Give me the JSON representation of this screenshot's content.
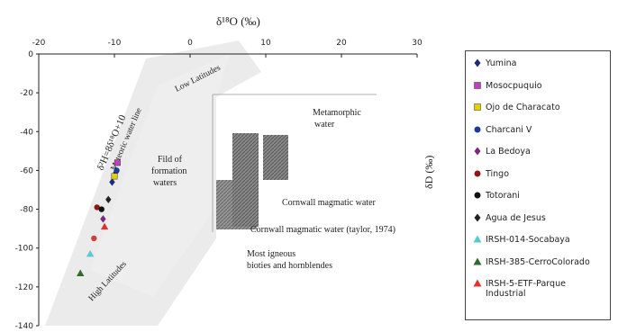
{
  "chart_data": {
    "type": "scatter",
    "title": "",
    "xlabel": "δ¹⁸O (‰)",
    "ylabel": "δD (‰)",
    "xlim": [
      -20,
      30
    ],
    "ylim": [
      -140,
      0
    ],
    "xticks": [
      -20,
      -10,
      0,
      10,
      20,
      30
    ],
    "yticks": [
      0,
      -20,
      -40,
      -60,
      -80,
      -100,
      -120,
      -140
    ],
    "series": [
      {
        "name": "Yumina",
        "color": "#1c2a7a",
        "marker": "diamond",
        "points": [
          [
            -9.8,
            -61
          ],
          [
            -10.3,
            -66
          ]
        ]
      },
      {
        "name": "Mosocpuquio",
        "color": "#c040c0",
        "marker": "square",
        "points": [
          [
            -9.6,
            -56
          ]
        ]
      },
      {
        "name": "Ojo de Characato",
        "color": "#e8d000",
        "marker": "square",
        "points": [
          [
            -10.0,
            -63
          ]
        ]
      },
      {
        "name": "Charcani V",
        "color": "#1a3b9a",
        "marker": "circle",
        "points": [
          [
            -9.7,
            -60
          ]
        ]
      },
      {
        "name": "La Bedoya",
        "color": "#7a2a7a",
        "marker": "diamond",
        "points": [
          [
            -11.5,
            -85
          ]
        ]
      },
      {
        "name": "Tingo",
        "color": "#8a1a1a",
        "marker": "circle",
        "points": [
          [
            -12.3,
            -79
          ]
        ]
      },
      {
        "name": "Totorani",
        "color": "#111111",
        "marker": "circle",
        "points": [
          [
            -11.7,
            -80
          ]
        ]
      },
      {
        "name": "Agua de Jesus",
        "color": "#222222",
        "marker": "diamond",
        "points": [
          [
            -10.8,
            -75
          ]
        ]
      },
      {
        "name": "IRSH-014-Socabaya",
        "color": "#59c9c9",
        "marker": "triangle",
        "points": [
          [
            -13.2,
            -103
          ]
        ]
      },
      {
        "name": "IRSH-385-CerroColorado",
        "color": "#2f6a2f",
        "marker": "triangle",
        "points": [
          [
            -14.5,
            -113
          ]
        ]
      },
      {
        "name": "IRSH-5-ETF-Parque Industrial",
        "color": "#e03030",
        "marker": "triangle",
        "points": [
          [
            -11.3,
            -89
          ]
        ]
      },
      {
        "name": "",
        "color": "#d04040",
        "marker": "circle",
        "points": [
          [
            -12.7,
            -95
          ]
        ]
      }
    ],
    "annotations": {
      "low_latitudes": "Low Latitudes",
      "high_latitudes": "High Latitudes",
      "meteoric_line_eq": "δ²H=8δ¹⁸O+10",
      "meteoric_line_name": "Meteoric water line",
      "formation_waters_1": "Fild of",
      "formation_waters_2": "formation",
      "formation_waters_3": "waters",
      "metamorphic_1": "Metamorphic",
      "metamorphic_2": "water",
      "cornwall_1": "Cornwall magmatic water",
      "cornwall_2": "Cornwall magmatic water (taylor, 1974)",
      "igneous_1": "Most igneous",
      "igneous_2": "bioties and hornblendes"
    },
    "grid": false,
    "legend_position": "right"
  }
}
